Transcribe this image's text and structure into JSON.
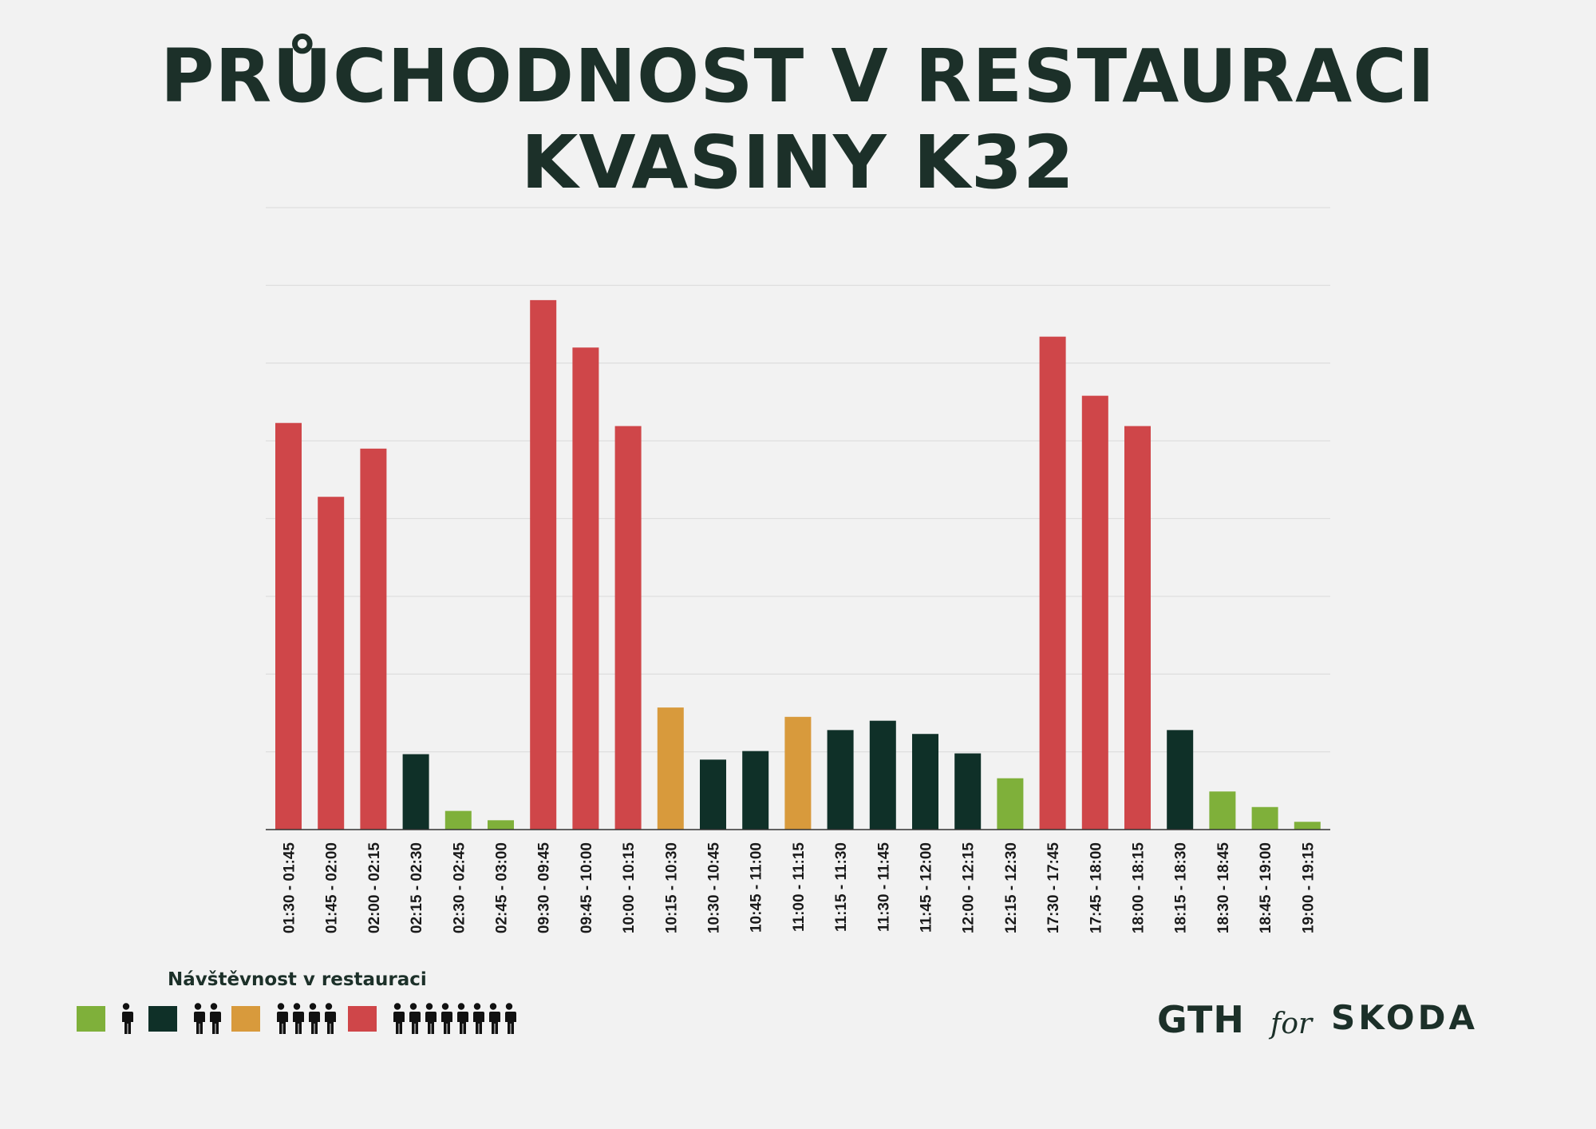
{
  "title": {
    "line1": "PRŮCHODNOST V RESTAURACI",
    "line2": "KVASINY K32"
  },
  "colors": {
    "background": "#f2f2f2",
    "text": "#1c3029",
    "green": "#7fb03a",
    "dark": "#0f3028",
    "orange": "#d89a3c",
    "red": "#cf4649",
    "grid": "#dedede",
    "axis": "#333333"
  },
  "chart_data": {
    "type": "bar",
    "title": "PRŮCHODNOST V RESTAURACI KVASINY K32",
    "xlabel": "",
    "ylabel": "",
    "ylim": [
      0,
      8
    ],
    "grid": true,
    "categories": [
      "01:30 - 01:45",
      "01:45 - 02:00",
      "02:00 - 02:15",
      "02:15 - 02:30",
      "02:30 - 02:45",
      "02:45 - 03:00",
      "09:30 - 09:45",
      "09:45 - 10:00",
      "10:00 - 10:15",
      "10:15 - 10:30",
      "10:30 - 10:45",
      "10:45 - 11:00",
      "11:00 - 11:15",
      "11:15 - 11:30",
      "11:30 - 11:45",
      "11:45 - 12:00",
      "12:00 - 12:15",
      "12:15 - 12:30",
      "17:30 - 17:45",
      "17:45 - 18:00",
      "18:00 - 18:15",
      "18:15 - 18:30",
      "18:30 - 18:45",
      "18:45 - 19:00",
      "19:00 - 19:15"
    ],
    "values": [
      5.23,
      4.28,
      4.9,
      0.97,
      0.24,
      0.12,
      6.81,
      6.2,
      5.19,
      1.57,
      0.9,
      1.01,
      1.45,
      1.28,
      1.4,
      1.23,
      0.98,
      0.66,
      6.34,
      5.58,
      5.19,
      1.28,
      0.49,
      0.29,
      0.1
    ],
    "bar_levels": [
      "red",
      "red",
      "red",
      "dark",
      "green",
      "green",
      "red",
      "red",
      "red",
      "orange",
      "dark",
      "dark",
      "orange",
      "dark",
      "dark",
      "dark",
      "dark",
      "green",
      "red",
      "red",
      "red",
      "dark",
      "green",
      "green",
      "green"
    ]
  },
  "legend": {
    "title": "Návštěvnost v restauraci",
    "items": [
      {
        "color": "#7fb03a",
        "people": 1
      },
      {
        "color": "#0f3028",
        "people": 2
      },
      {
        "color": "#d89a3c",
        "people": 4
      },
      {
        "color": "#cf4649",
        "people": 8
      }
    ]
  },
  "logos": {
    "left": "GTH",
    "connector": "for",
    "right": "SKODA"
  }
}
